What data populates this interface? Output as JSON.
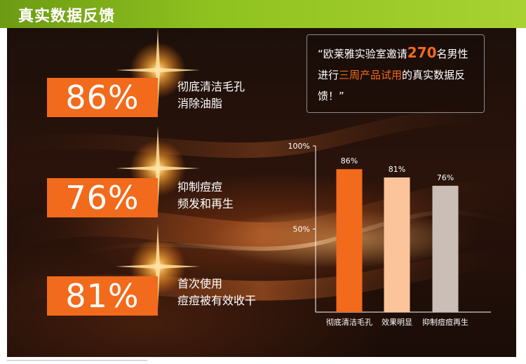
{
  "header": {
    "title": "真实数据反馈"
  },
  "stats": [
    {
      "value": "86%",
      "line1": "彻底清洁毛孔",
      "line2": "消除油脂"
    },
    {
      "value": "76%",
      "line1": "抑制痘痘",
      "line2": "频发和再生"
    },
    {
      "value": "81%",
      "line1": "首次使用",
      "line2": "痘痘被有效收干"
    }
  ],
  "quote": {
    "part1": "“欧莱雅实验室邀请",
    "number": "270",
    "part2": "名男性进行",
    "highlight": "三周产品试用",
    "part3": "的真实数据反馈！”"
  },
  "colors": {
    "accent": "#f26a1b",
    "header_green": "#8fc21f",
    "bar_peach": "#fcc49a",
    "bar_gray": "#cbbeb6"
  },
  "chart_data": {
    "type": "bar",
    "categories": [
      "彻底清洁毛孔",
      "效果明显",
      "抑制痘痘再生"
    ],
    "values": [
      86,
      81,
      76
    ],
    "value_labels": [
      "86%",
      "81%",
      "76%"
    ],
    "ytick_labels": [
      "100%",
      "50%"
    ],
    "ytick_values": [
      100,
      50
    ],
    "ylim": [
      0,
      100
    ],
    "bar_colors": [
      "#f26a1b",
      "#fcc49a",
      "#cbbeb6"
    ],
    "grid": false
  }
}
